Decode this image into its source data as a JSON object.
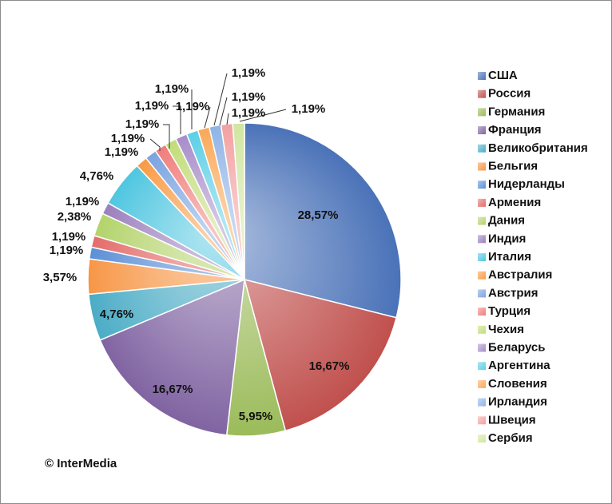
{
  "chart_data": {
    "type": "pie",
    "categories": [
      "США",
      "Россия",
      "Германия",
      "Франция",
      "Великобритания",
      "Бельгия",
      "Нидерланды",
      "Армения",
      "Дания",
      "Индия",
      "Италия",
      "Австралия",
      "Австрия",
      "Турция",
      "Чехия",
      "Беларусь",
      "Аргентина",
      "Словения",
      "Ирландия",
      "Швеция",
      "Сербия"
    ],
    "values": [
      28.57,
      16.67,
      5.95,
      16.67,
      4.76,
      3.57,
      1.19,
      1.19,
      2.38,
      1.19,
      4.76,
      1.19,
      1.19,
      1.19,
      1.19,
      1.19,
      1.19,
      1.19,
      1.19,
      1.19,
      1.19
    ],
    "data_labels": [
      "28,57%",
      "16,67%",
      "5,95%",
      "16,67%",
      "4,76%",
      "3,57%",
      "1,19%",
      "1,19%",
      "2,38%",
      "1,19%",
      "4,76%",
      "1,19%",
      "1,19%",
      "1,19%",
      "1,19%",
      "1,19%",
      "1,19%",
      "1,19%",
      "1,19%",
      "1,19%",
      "1,19%"
    ],
    "colors": [
      "#4a72b8",
      "#c0504d",
      "#9bbb59",
      "#8064a2",
      "#4bacc6",
      "#f79646",
      "#5b8fd6",
      "#e36c6a",
      "#b3d36b",
      "#9b7fbd",
      "#4fc6e0",
      "#f99a45",
      "#7aa3e0",
      "#f07d7b",
      "#c2dc7a",
      "#a78dc9",
      "#5ccfe6",
      "#fba857",
      "#8fb4e6",
      "#f3a0a0",
      "#d0e6a0"
    ],
    "legend_position": "right",
    "title": ""
  },
  "copyright": "© InterMedia"
}
